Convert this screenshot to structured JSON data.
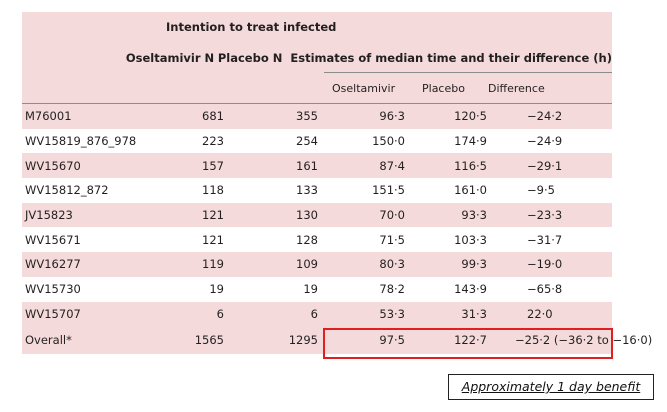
{
  "header": {
    "group_title": "Intention to treat infected",
    "col_oseltamivir_n": "Oseltamivir N",
    "col_placebo_n": "Placebo N",
    "estimates_title": "Estimates of median time and their difference (h)",
    "sub_oseltamivir": "Oseltamivir",
    "sub_placebo": "Placebo",
    "sub_difference": "Difference"
  },
  "rows": [
    {
      "study": "M76001",
      "osel_n": "681",
      "plac_n": "355",
      "osel_t": "96·3",
      "plac_t": "120·5",
      "diff": "−24·2"
    },
    {
      "study": "WV15819_876_978",
      "osel_n": "223",
      "plac_n": "254",
      "osel_t": "150·0",
      "plac_t": "174·9",
      "diff": "−24·9"
    },
    {
      "study": "WV15670",
      "osel_n": "157",
      "plac_n": "161",
      "osel_t": "87·4",
      "plac_t": "116·5",
      "diff": "−29·1"
    },
    {
      "study": "WV15812_872",
      "osel_n": "118",
      "plac_n": "133",
      "osel_t": "151·5",
      "plac_t": "161·0",
      "diff": "−9·5"
    },
    {
      "study": "JV15823",
      "osel_n": "121",
      "plac_n": "130",
      "osel_t": "70·0",
      "plac_t": "93·3",
      "diff": "−23·3"
    },
    {
      "study": "WV15671",
      "osel_n": "121",
      "plac_n": "128",
      "osel_t": "71·5",
      "plac_t": "103·3",
      "diff": "−31·7"
    },
    {
      "study": "WV16277",
      "osel_n": "119",
      "plac_n": "109",
      "osel_t": "80·3",
      "plac_t": "99·3",
      "diff": "−19·0"
    },
    {
      "study": "WV15730",
      "osel_n": "19",
      "plac_n": "19",
      "osel_t": "78·2",
      "plac_t": "143·9",
      "diff": "−65·8"
    },
    {
      "study": "WV15707",
      "osel_n": "6",
      "plac_n": "6",
      "osel_t": "53·3",
      "plac_t": "31·3",
      "diff": "22·0"
    },
    {
      "study": "Overall*",
      "osel_n": "1565",
      "plac_n": "1295",
      "osel_t": "97·5",
      "plac_t": "122·7",
      "diff": "−25·2 (−36·2 to −16·0)"
    }
  ],
  "annotation": "Approximately 1 day benefit",
  "colors": {
    "row_shade": "#f4dada",
    "highlight_border": "#e02020"
  }
}
